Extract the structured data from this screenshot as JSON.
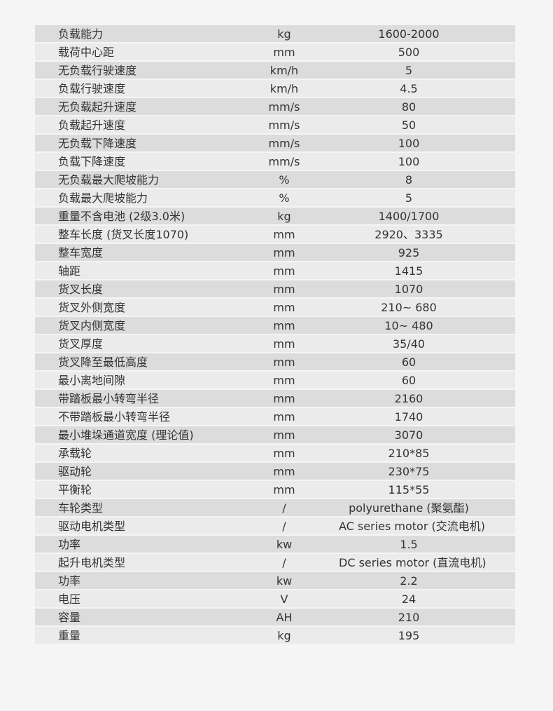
{
  "spec_table": {
    "rows": [
      {
        "name": "负载能力",
        "unit": "kg",
        "value": "1600-2000"
      },
      {
        "name": "载荷中心距",
        "unit": "mm",
        "value": "500"
      },
      {
        "name": "无负载行驶速度",
        "unit": "km/h",
        "value": "5"
      },
      {
        "name": "负载行驶速度",
        "unit": "km/h",
        "value": "4.5"
      },
      {
        "name": "无负载起升速度",
        "unit": "mm/s",
        "value": "80"
      },
      {
        "name": "负载起升速度",
        "unit": "mm/s",
        "value": "50"
      },
      {
        "name": "无负载下降速度",
        "unit": "mm/s",
        "value": "100"
      },
      {
        "name": "负载下降速度",
        "unit": "mm/s",
        "value": "100"
      },
      {
        "name": "无负载最大爬坡能力",
        "unit": "%",
        "value": "8"
      },
      {
        "name": "负载最大爬坡能力",
        "unit": "%",
        "value": "5"
      },
      {
        "name": "重量不含电池 (2级3.0米)",
        "unit": "kg",
        "value": "1400/1700"
      },
      {
        "name": "整车长度 (货叉长度1070)",
        "unit": "mm",
        "value": "2920、3335"
      },
      {
        "name": "整车宽度",
        "unit": "mm",
        "value": "925"
      },
      {
        "name": "轴距",
        "unit": "mm",
        "value": "1415"
      },
      {
        "name": "货叉长度",
        "unit": "mm",
        "value": "1070"
      },
      {
        "name": "货叉外侧宽度",
        "unit": "mm",
        "value": "210~ 680"
      },
      {
        "name": "货叉内侧宽度",
        "unit": "mm",
        "value": "10~ 480"
      },
      {
        "name": "货叉厚度",
        "unit": "mm",
        "value": "35/40"
      },
      {
        "name": "货叉降至最低高度",
        "unit": "mm",
        "value": "60"
      },
      {
        "name": "最小离地间隙",
        "unit": "mm",
        "value": "60"
      },
      {
        "name": "带踏板最小转弯半径",
        "unit": "mm",
        "value": "2160"
      },
      {
        "name": "不带踏板最小转弯半径",
        "unit": "mm",
        "value": "1740"
      },
      {
        "name": "最小堆垛通道宽度 (理论值)",
        "unit": "mm",
        "value": "3070"
      },
      {
        "name": "承载轮",
        "unit": "mm",
        "value": "210*85"
      },
      {
        "name": "驱动轮",
        "unit": "mm",
        "value": "230*75"
      },
      {
        "name": "平衡轮",
        "unit": "mm",
        "value": "115*55"
      },
      {
        "name": "车轮类型",
        "unit": "/",
        "value": "polyurethane (聚氨酯)"
      },
      {
        "name": "驱动电机类型",
        "unit": "/",
        "value": "AC series motor (交流电机)"
      },
      {
        "name": "功率",
        "unit": "kw",
        "value": "1.5"
      },
      {
        "name": "起升电机类型",
        "unit": "/",
        "value": "DC series motor (直流电机)"
      },
      {
        "name": "功率",
        "unit": "kw",
        "value": "2.2"
      },
      {
        "name": "电压",
        "unit": "V",
        "value": "24"
      },
      {
        "name": "容量",
        "unit": "AH",
        "value": "210"
      },
      {
        "name": "重量",
        "unit": "kg",
        "value": "195"
      }
    ]
  }
}
